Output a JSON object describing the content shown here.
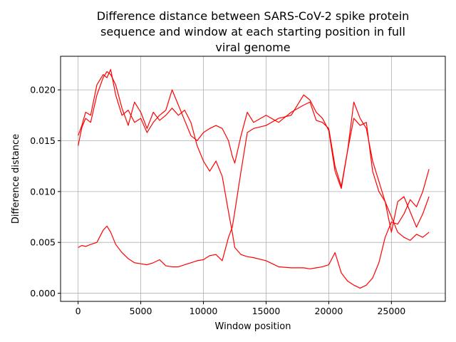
{
  "chart_data": {
    "type": "line",
    "title_lines": [
      "Difference distance between SARS-CoV-2 spike protein",
      "sequence and window at each starting position in full",
      "viral genome"
    ],
    "xlabel": "Window position",
    "ylabel": "Difference distance",
    "xlim": [
      -1400,
      29300
    ],
    "ylim": [
      -0.0008,
      0.0233
    ],
    "xticks": [
      0,
      5000,
      10000,
      15000,
      20000,
      25000
    ],
    "xtick_labels": [
      "0",
      "5000",
      "10000",
      "15000",
      "20000",
      "25000"
    ],
    "yticks": [
      0.0,
      0.005,
      0.01,
      0.015,
      0.02
    ],
    "ytick_labels": [
      "0.000",
      "0.005",
      "0.010",
      "0.015",
      "0.020"
    ],
    "grid": true,
    "series_color": "#ff0000",
    "series": [
      {
        "x": [
          0,
          300,
          600,
          1000,
          1500,
          2000,
          2300,
          2600,
          3000,
          3500,
          4000,
          4500,
          5000,
          5500,
          6000,
          6500,
          7000,
          7500,
          8000,
          8500,
          9000,
          9500,
          10000,
          10500,
          11000,
          11500,
          12000,
          12300,
          12500,
          13000,
          13500,
          14000,
          15000,
          16000,
          17000,
          18000,
          18500,
          19000,
          19500,
          20000,
          20500,
          21000,
          21500,
          22000,
          22500,
          23000,
          23500,
          24000,
          24500,
          25000,
          25500,
          26000,
          26500,
          27000,
          27500,
          28000
        ],
        "y": [
          0.0145,
          0.0163,
          0.0172,
          0.0168,
          0.0195,
          0.0212,
          0.0218,
          0.0215,
          0.0205,
          0.0182,
          0.0165,
          0.0188,
          0.0178,
          0.0162,
          0.0178,
          0.017,
          0.0175,
          0.0182,
          0.0175,
          0.018,
          0.0168,
          0.0145,
          0.013,
          0.012,
          0.013,
          0.0115,
          0.008,
          0.006,
          0.0045,
          0.0038,
          0.0036,
          0.0035,
          0.0032,
          0.0026,
          0.0025,
          0.0025,
          0.0024,
          0.0025,
          0.0026,
          0.0028,
          0.004,
          0.002,
          0.0012,
          0.0008,
          0.0005,
          0.0008,
          0.0015,
          0.003,
          0.0055,
          0.007,
          0.0068,
          0.0078,
          0.0092,
          0.0085,
          0.01,
          0.0122
        ]
      },
      {
        "x": [
          0,
          300,
          600,
          1000,
          1500,
          2000,
          2300,
          2600,
          3000,
          3500,
          4000,
          4500,
          5000,
          5500,
          6000,
          6500,
          7000,
          7500,
          8000,
          8500,
          9000,
          9500,
          10000,
          10500,
          11000,
          11500,
          12000,
          12300,
          12500,
          13000,
          13500,
          14000,
          15000,
          16000,
          17000,
          18000,
          18500,
          19000,
          19500,
          20000,
          20500,
          21000,
          21500,
          22000,
          22500,
          23000,
          23500,
          24000,
          24500,
          25000,
          25500,
          26000,
          26500,
          27000,
          27500,
          28000
        ],
        "y": [
          0.0045,
          0.0047,
          0.0046,
          0.0048,
          0.005,
          0.0062,
          0.0066,
          0.006,
          0.0048,
          0.004,
          0.0034,
          0.003,
          0.0029,
          0.0028,
          0.003,
          0.0033,
          0.0027,
          0.0026,
          0.0026,
          0.0028,
          0.003,
          0.0032,
          0.0033,
          0.0037,
          0.0038,
          0.0032,
          0.0055,
          0.0065,
          0.008,
          0.012,
          0.0158,
          0.0162,
          0.0165,
          0.0172,
          0.0175,
          0.0195,
          0.019,
          0.0178,
          0.0172,
          0.016,
          0.012,
          0.0103,
          0.014,
          0.0188,
          0.0172,
          0.0162,
          0.013,
          0.011,
          0.009,
          0.0075,
          0.006,
          0.0055,
          0.0052,
          0.0058,
          0.0055,
          0.006
        ]
      },
      {
        "x": [
          0,
          300,
          600,
          1000,
          1500,
          2000,
          2300,
          2600,
          3000,
          3500,
          4000,
          4500,
          5000,
          5500,
          6000,
          6500,
          7000,
          7500,
          8000,
          8500,
          9000,
          9500,
          10000,
          10500,
          11000,
          11500,
          12000,
          12300,
          12500,
          13000,
          13500,
          14000,
          15000,
          16000,
          17000,
          18000,
          18500,
          19000,
          19500,
          20000,
          20500,
          21000,
          21500,
          22000,
          22500,
          23000,
          23500,
          24000,
          24500,
          25000,
          25500,
          26000,
          26500,
          27000,
          27500,
          28000
        ],
        "y": [
          0.0155,
          0.0165,
          0.0178,
          0.0175,
          0.0205,
          0.0215,
          0.0212,
          0.022,
          0.0195,
          0.0175,
          0.018,
          0.0168,
          0.0172,
          0.0158,
          0.0168,
          0.0175,
          0.018,
          0.02,
          0.0185,
          0.017,
          0.0155,
          0.015,
          0.0158,
          0.0162,
          0.0165,
          0.0162,
          0.015,
          0.0135,
          0.0128,
          0.0155,
          0.0178,
          0.0168,
          0.0175,
          0.0168,
          0.0178,
          0.0185,
          0.0188,
          0.017,
          0.0168,
          0.0162,
          0.0125,
          0.0105,
          0.014,
          0.0172,
          0.0165,
          0.0168,
          0.012,
          0.01,
          0.009,
          0.006,
          0.009,
          0.0095,
          0.008,
          0.0065,
          0.0078,
          0.0095
        ]
      }
    ]
  }
}
